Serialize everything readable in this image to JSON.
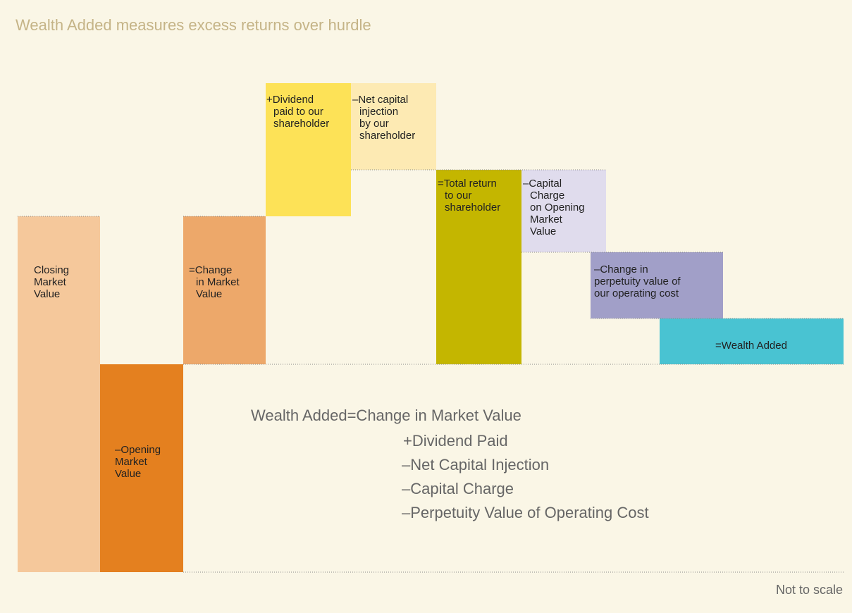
{
  "title": "Wealth Added measures excess returns over hurdle",
  "blocks": [
    {
      "lines": [
        "Closing",
        "Market",
        "Value"
      ]
    },
    {
      "lines": [
        "–Opening",
        "Market",
        "Value"
      ]
    },
    {
      "lines": [
        "=Change",
        "in Market",
        "Value"
      ]
    },
    {
      "lines": [
        "+Dividend",
        "paid to our",
        "shareholder"
      ]
    },
    {
      "lines": [
        "–Net capital",
        "injection",
        "by our",
        "shareholder"
      ]
    },
    {
      "lines": [
        "=Total return",
        "to our",
        "shareholder"
      ]
    },
    {
      "lines": [
        "–Capital",
        "Charge",
        "on Opening",
        "Market",
        "Value"
      ]
    },
    {
      "lines": [
        "–Change in",
        "perpetuity value of",
        "our operating cost"
      ]
    },
    {
      "lines": [
        "=Wealth Added"
      ]
    }
  ],
  "formula": [
    "Wealth Added=Change in Market Value",
    "+Dividend Paid",
    "–Net Capital Injection",
    "–Capital Charge",
    "–Perpetuity Value of Operating Cost"
  ],
  "footnote": "Not to scale"
}
